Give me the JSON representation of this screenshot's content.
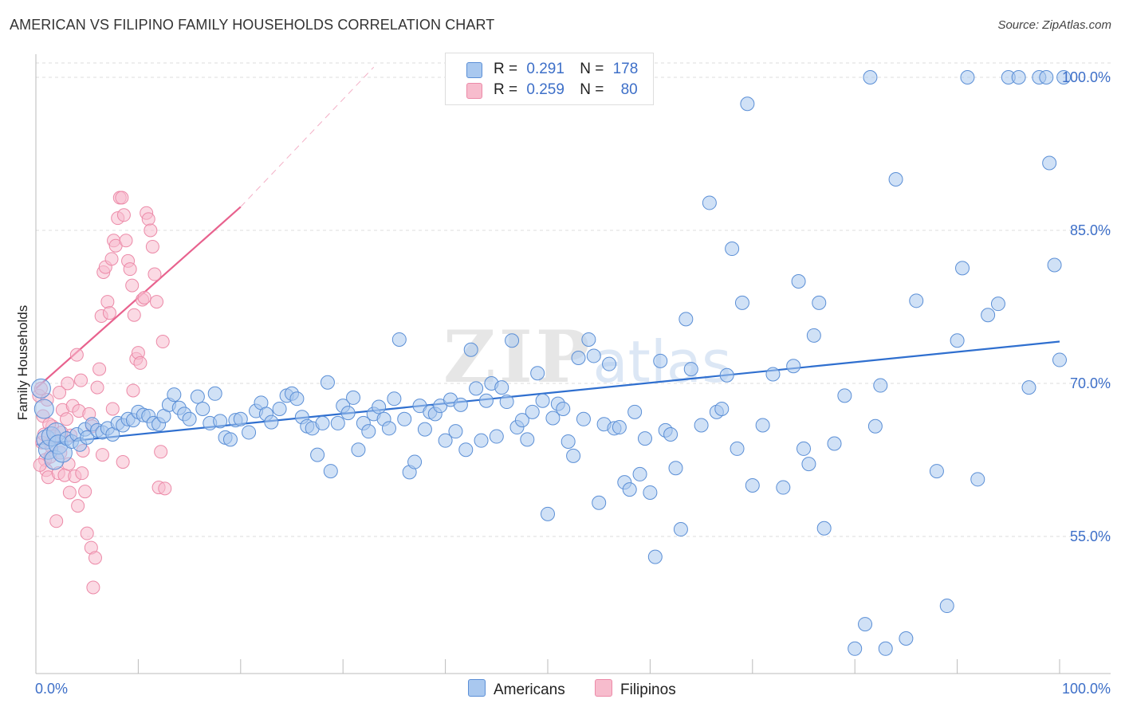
{
  "header": {
    "title": "AMERICAN VS FILIPINO FAMILY HOUSEHOLDS CORRELATION CHART",
    "source": "Source: ZipAtlas.com"
  },
  "watermark": {
    "zip": "ZIP",
    "atlas": "atlas"
  },
  "legend_top": {
    "americans": {
      "r_label": "R =",
      "r_value": "0.291",
      "n_label": "N =",
      "n_value": "178"
    },
    "filipinos": {
      "r_label": "R =",
      "r_value": "0.259",
      "n_label": "N =",
      "n_value": "80"
    }
  },
  "legend_bottom": {
    "americans": "Americans",
    "filipinos": "Filipinos"
  },
  "colors": {
    "americans_fill": "#a9c8ef",
    "americans_stroke": "#5b8fd6",
    "americans_line": "#2f6fcf",
    "filipinos_fill": "#f7bccd",
    "filipinos_stroke": "#ec8aa8",
    "filipinos_line": "#e8628e",
    "grid": "#dddddd",
    "tick_text": "#3d6fc8"
  },
  "chart_data": {
    "type": "scatter",
    "title": "AMERICAN VS FILIPINO FAMILY HOUSEHOLDS CORRELATION CHART",
    "xlabel": "",
    "ylabel": "Family Households",
    "xlim": [
      0,
      100
    ],
    "ylim": [
      40,
      102
    ],
    "x_tick_labels": [
      "0.0%",
      "100.0%"
    ],
    "y_ticks": [
      55,
      70,
      85,
      100
    ],
    "y_tick_labels": [
      "55.0%",
      "70.0%",
      "85.0%",
      "100.0%"
    ],
    "grid": true,
    "legend": "top-center",
    "series": [
      {
        "name": "Americans",
        "r": 0.291,
        "n": 178,
        "trend": {
          "x": [
            0,
            100
          ],
          "y": [
            64.0,
            74.1
          ]
        },
        "points": [
          [
            0.5,
            69.5
          ],
          [
            0.8,
            67.5
          ],
          [
            1.0,
            64.5
          ],
          [
            1.2,
            63.5
          ],
          [
            1.5,
            64.8
          ],
          [
            1.8,
            62.5
          ],
          [
            2.0,
            65.2
          ],
          [
            2.2,
            64.0
          ],
          [
            2.6,
            63.2
          ],
          [
            3.0,
            64.6
          ],
          [
            3.5,
            64.3
          ],
          [
            4.0,
            65.0
          ],
          [
            4.3,
            64.0
          ],
          [
            4.8,
            65.5
          ],
          [
            5.0,
            64.7
          ],
          [
            5.5,
            66.0
          ],
          [
            6.0,
            65.4
          ],
          [
            6.5,
            65.2
          ],
          [
            7.0,
            65.6
          ],
          [
            7.5,
            65.0
          ],
          [
            8.0,
            66.1
          ],
          [
            8.5,
            65.9
          ],
          [
            9.0,
            66.5
          ],
          [
            9.5,
            66.4
          ],
          [
            10.0,
            67.2
          ],
          [
            10.5,
            66.9
          ],
          [
            11.0,
            66.8
          ],
          [
            11.5,
            66.1
          ],
          [
            12.0,
            66.0
          ],
          [
            12.5,
            66.8
          ],
          [
            13.0,
            67.9
          ],
          [
            13.5,
            68.9
          ],
          [
            14.0,
            67.6
          ],
          [
            14.5,
            67.0
          ],
          [
            15.0,
            66.5
          ],
          [
            15.8,
            68.7
          ],
          [
            16.3,
            67.5
          ],
          [
            17.0,
            66.1
          ],
          [
            17.5,
            69.0
          ],
          [
            18.0,
            66.3
          ],
          [
            18.5,
            64.7
          ],
          [
            19.0,
            64.5
          ],
          [
            19.5,
            66.4
          ],
          [
            20.0,
            66.5
          ],
          [
            20.8,
            65.2
          ],
          [
            21.5,
            67.3
          ],
          [
            22.0,
            68.1
          ],
          [
            22.5,
            67.0
          ],
          [
            23.0,
            66.2
          ],
          [
            23.8,
            67.5
          ],
          [
            24.5,
            68.8
          ],
          [
            25.0,
            69.0
          ],
          [
            25.5,
            68.5
          ],
          [
            26.0,
            66.7
          ],
          [
            26.5,
            65.8
          ],
          [
            27.0,
            65.6
          ],
          [
            27.5,
            63.0
          ],
          [
            28.0,
            66.1
          ],
          [
            28.5,
            70.1
          ],
          [
            28.8,
            61.4
          ],
          [
            29.5,
            66.1
          ],
          [
            30.0,
            67.8
          ],
          [
            30.5,
            67.1
          ],
          [
            31.0,
            68.6
          ],
          [
            31.5,
            63.5
          ],
          [
            32.0,
            66.1
          ],
          [
            32.5,
            65.3
          ],
          [
            33.0,
            67.0
          ],
          [
            33.5,
            67.7
          ],
          [
            34.0,
            66.5
          ],
          [
            34.5,
            65.6
          ],
          [
            35.0,
            68.5
          ],
          [
            35.5,
            74.3
          ],
          [
            36.0,
            66.5
          ],
          [
            36.5,
            61.3
          ],
          [
            37.0,
            62.3
          ],
          [
            37.5,
            67.8
          ],
          [
            38.0,
            65.5
          ],
          [
            38.5,
            67.2
          ],
          [
            39.0,
            67.0
          ],
          [
            39.5,
            67.8
          ],
          [
            40.0,
            64.4
          ],
          [
            40.5,
            68.4
          ],
          [
            41.0,
            65.3
          ],
          [
            41.5,
            67.9
          ],
          [
            42.0,
            63.5
          ],
          [
            42.5,
            73.3
          ],
          [
            43.0,
            69.5
          ],
          [
            43.5,
            64.4
          ],
          [
            44.0,
            68.3
          ],
          [
            44.5,
            70.0
          ],
          [
            45.0,
            64.8
          ],
          [
            45.5,
            69.6
          ],
          [
            46.0,
            68.2
          ],
          [
            46.5,
            74.2
          ],
          [
            47.0,
            65.7
          ],
          [
            47.5,
            66.4
          ],
          [
            48.0,
            64.5
          ],
          [
            48.5,
            67.2
          ],
          [
            49.0,
            71.0
          ],
          [
            49.5,
            68.3
          ],
          [
            50.0,
            57.2
          ],
          [
            50.5,
            66.6
          ],
          [
            51.0,
            68.0
          ],
          [
            51.5,
            67.5
          ],
          [
            52.0,
            64.3
          ],
          [
            52.5,
            62.9
          ],
          [
            53.0,
            72.5
          ],
          [
            53.5,
            66.5
          ],
          [
            54.0,
            74.3
          ],
          [
            54.5,
            72.7
          ],
          [
            55.0,
            58.3
          ],
          [
            55.5,
            66.0
          ],
          [
            56.0,
            71.9
          ],
          [
            56.5,
            65.6
          ],
          [
            57.0,
            65.7
          ],
          [
            57.5,
            60.3
          ],
          [
            58.0,
            59.6
          ],
          [
            58.5,
            67.2
          ],
          [
            59.0,
            61.1
          ],
          [
            59.5,
            64.6
          ],
          [
            60.0,
            59.3
          ],
          [
            60.5,
            53.0
          ],
          [
            61.0,
            72.2
          ],
          [
            61.5,
            65.4
          ],
          [
            62.0,
            65.0
          ],
          [
            62.5,
            61.7
          ],
          [
            63.0,
            55.7
          ],
          [
            63.5,
            76.3
          ],
          [
            64.0,
            71.4
          ],
          [
            65.0,
            65.9
          ],
          [
            65.8,
            87.7
          ],
          [
            66.5,
            67.2
          ],
          [
            67.0,
            67.5
          ],
          [
            67.5,
            70.8
          ],
          [
            68.0,
            83.2
          ],
          [
            68.5,
            63.6
          ],
          [
            69.0,
            77.9
          ],
          [
            69.5,
            97.4
          ],
          [
            70.0,
            60.0
          ],
          [
            71.0,
            65.9
          ],
          [
            72.0,
            70.9
          ],
          [
            73.0,
            59.8
          ],
          [
            74.0,
            71.7
          ],
          [
            74.5,
            80.0
          ],
          [
            75.0,
            63.6
          ],
          [
            75.5,
            62.1
          ],
          [
            76.0,
            74.7
          ],
          [
            76.5,
            77.9
          ],
          [
            77.0,
            55.8
          ],
          [
            78.0,
            64.1
          ],
          [
            79.0,
            68.8
          ],
          [
            80.0,
            44.0
          ],
          [
            81.0,
            46.4
          ],
          [
            81.5,
            100.0
          ],
          [
            82.0,
            65.8
          ],
          [
            82.5,
            69.8
          ],
          [
            83.0,
            44.0
          ],
          [
            84.0,
            90.0
          ],
          [
            85.0,
            45.0
          ],
          [
            86.0,
            78.1
          ],
          [
            88.0,
            61.4
          ],
          [
            89.0,
            48.2
          ],
          [
            90.0,
            74.2
          ],
          [
            90.5,
            81.3
          ],
          [
            91.0,
            100.0
          ],
          [
            92.0,
            60.6
          ],
          [
            93.0,
            76.7
          ],
          [
            94.0,
            77.8
          ],
          [
            95.0,
            100.0
          ],
          [
            96.0,
            100.0
          ],
          [
            97.0,
            69.6
          ],
          [
            98.0,
            100.0
          ],
          [
            98.7,
            100.0
          ],
          [
            99.0,
            91.6
          ],
          [
            99.5,
            81.6
          ],
          [
            100.0,
            72.3
          ],
          [
            100.4,
            100.0
          ]
        ]
      },
      {
        "name": "Filipinos",
        "r": 0.259,
        "n": 80,
        "trend": {
          "x": [
            0,
            20
          ],
          "y": [
            69.5,
            87.3
          ]
        },
        "trend_extension": {
          "x": [
            20,
            33
          ],
          "y": [
            87.3,
            101.0
          ]
        },
        "points": [
          [
            0.3,
            68.8
          ],
          [
            0.5,
            69.5
          ],
          [
            0.7,
            66.8
          ],
          [
            0.9,
            62.5
          ],
          [
            1.0,
            61.5
          ],
          [
            1.2,
            60.8
          ],
          [
            1.4,
            62.8
          ],
          [
            1.5,
            63.8
          ],
          [
            1.6,
            65.8
          ],
          [
            1.8,
            64.8
          ],
          [
            2.0,
            56.5
          ],
          [
            2.2,
            61.2
          ],
          [
            2.4,
            63.2
          ],
          [
            2.6,
            67.4
          ],
          [
            2.8,
            61.0
          ],
          [
            3.0,
            66.5
          ],
          [
            3.2,
            62.1
          ],
          [
            3.4,
            64.9
          ],
          [
            3.6,
            67.8
          ],
          [
            3.8,
            60.9
          ],
          [
            4.0,
            72.8
          ],
          [
            4.2,
            67.3
          ],
          [
            4.4,
            70.3
          ],
          [
            4.6,
            63.4
          ],
          [
            4.8,
            59.4
          ],
          [
            5.0,
            55.3
          ],
          [
            5.2,
            67.0
          ],
          [
            5.4,
            53.9
          ],
          [
            5.6,
            50.0
          ],
          [
            5.8,
            52.9
          ],
          [
            6.0,
            69.6
          ],
          [
            6.2,
            71.4
          ],
          [
            6.4,
            76.6
          ],
          [
            6.6,
            80.9
          ],
          [
            6.8,
            81.4
          ],
          [
            7.0,
            78.0
          ],
          [
            7.2,
            76.9
          ],
          [
            7.4,
            82.2
          ],
          [
            7.6,
            84.0
          ],
          [
            7.8,
            83.5
          ],
          [
            8.0,
            86.2
          ],
          [
            8.2,
            88.2
          ],
          [
            8.4,
            88.2
          ],
          [
            8.6,
            86.5
          ],
          [
            8.8,
            84.0
          ],
          [
            9.0,
            82.0
          ],
          [
            9.2,
            81.2
          ],
          [
            9.4,
            79.6
          ],
          [
            9.6,
            76.7
          ],
          [
            9.8,
            72.4
          ],
          [
            10.0,
            73.0
          ],
          [
            10.2,
            72.0
          ],
          [
            10.4,
            78.2
          ],
          [
            10.6,
            78.4
          ],
          [
            10.8,
            86.7
          ],
          [
            11.0,
            86.1
          ],
          [
            11.2,
            85.0
          ],
          [
            11.4,
            83.4
          ],
          [
            11.6,
            80.7
          ],
          [
            11.8,
            78.0
          ],
          [
            12.0,
            59.8
          ],
          [
            12.2,
            63.3
          ],
          [
            12.4,
            74.1
          ],
          [
            12.6,
            59.7
          ],
          [
            2.5,
            65.2
          ],
          [
            3.1,
            70.0
          ],
          [
            1.3,
            66.0
          ],
          [
            0.6,
            64.2
          ],
          [
            4.5,
            61.2
          ],
          [
            5.5,
            65.8
          ],
          [
            6.5,
            63.0
          ],
          [
            7.5,
            67.5
          ],
          [
            8.5,
            62.3
          ],
          [
            9.5,
            69.3
          ],
          [
            1.1,
            68.4
          ],
          [
            2.3,
            69.1
          ],
          [
            3.3,
            59.3
          ],
          [
            4.1,
            58.0
          ],
          [
            0.4,
            62.0
          ],
          [
            0.8,
            65.0
          ]
        ]
      }
    ]
  }
}
